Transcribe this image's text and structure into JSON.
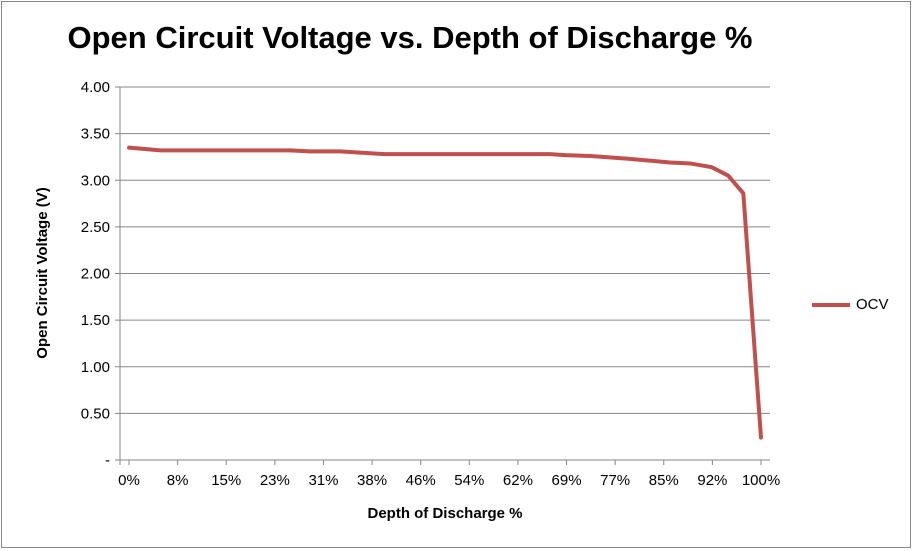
{
  "chart_data": {
    "type": "line",
    "title": "Open Circuit Voltage vs. Depth of Discharge %",
    "xlabel": "Depth of Discharge %",
    "ylabel": "Open Circuit Voltage (V)",
    "ylim": [
      0,
      4
    ],
    "yticks": [
      "-",
      "0.50",
      "1.00",
      "1.50",
      "2.00",
      "2.50",
      "3.00",
      "3.50",
      "4.00"
    ],
    "xticks": [
      "0%",
      "8%",
      "15%",
      "23%",
      "31%",
      "38%",
      "46%",
      "54%",
      "62%",
      "69%",
      "77%",
      "85%",
      "92%",
      "100%"
    ],
    "grid": true,
    "legend": "right",
    "series": [
      {
        "name": "OCV",
        "color": "#c0504d",
        "x": [
          0,
          5,
          16,
          25.5,
          28.6,
          33.4,
          40.5,
          61.9,
          66.6,
          69,
          73,
          79,
          82.4,
          85.6,
          88.8,
          92.2,
          94.8,
          97.2,
          100
        ],
        "y": [
          3.35,
          3.32,
          3.32,
          3.32,
          3.31,
          3.31,
          3.28,
          3.28,
          3.28,
          3.27,
          3.26,
          3.23,
          3.21,
          3.19,
          3.18,
          3.14,
          3.05,
          2.86,
          0.24
        ]
      }
    ]
  }
}
